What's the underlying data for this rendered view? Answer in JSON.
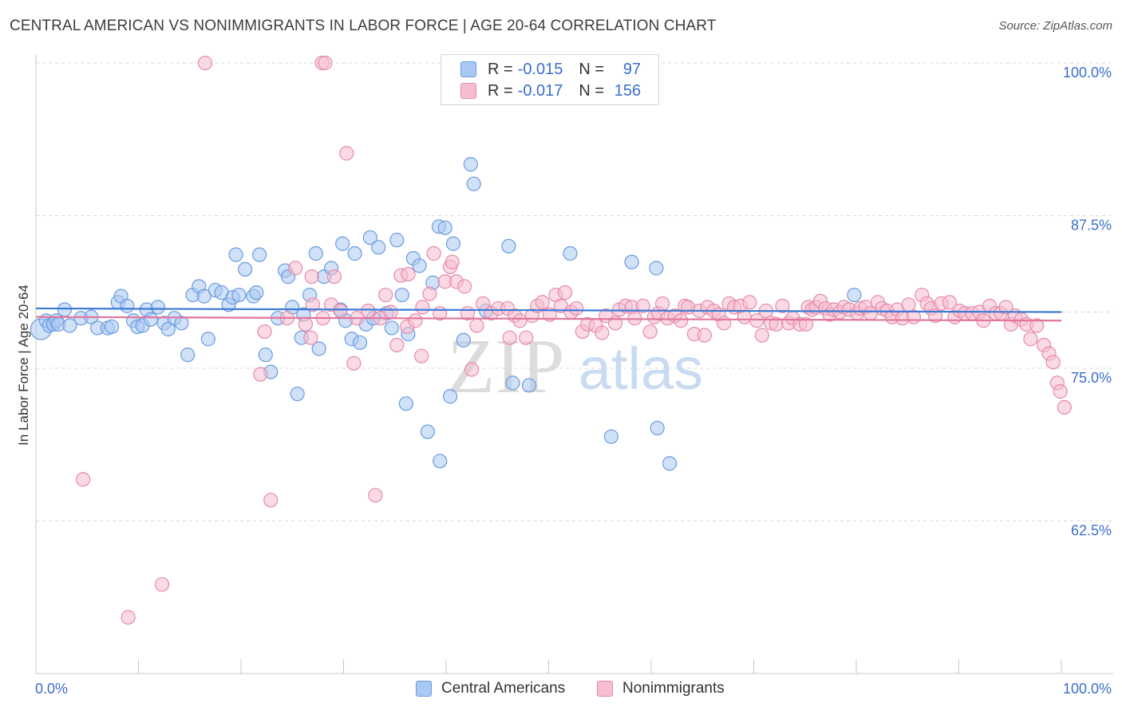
{
  "title": "CENTRAL AMERICAN VS NONIMMIGRANTS IN LABOR FORCE | AGE 20-64 CORRELATION CHART",
  "source": "Source: ZipAtlas.com",
  "watermark": {
    "zip": "ZIP",
    "atlas": "atlas"
  },
  "legend_top": {
    "rows": [
      {
        "r_label": "R =",
        "r_value": "-0.015",
        "n_label": "N =",
        "n_value": "97",
        "color": "#a9c8f2",
        "border": "#6a9be0"
      },
      {
        "r_label": "R =",
        "r_value": "-0.017",
        "n_label": "N =",
        "n_value": "156",
        "color": "#f6bdd0",
        "border": "#e889a8"
      }
    ]
  },
  "legend_bottom": [
    {
      "label": "Central Americans",
      "color": "#a9c8f2",
      "border": "#6a9be0"
    },
    {
      "label": "Nonimmigrants",
      "color": "#f6bdd0",
      "border": "#e889a8"
    }
  ],
  "chart_data": {
    "type": "scatter",
    "title": "CENTRAL AMERICAN VS NONIMMIGRANTS IN LABOR FORCE | AGE 20-64 CORRELATION CHART",
    "xlabel": "",
    "ylabel": "In Labor Force | Age 20-64",
    "xlim": [
      0,
      100
    ],
    "ylim": [
      50,
      100
    ],
    "x_tick_labels": [
      "0.0%",
      "100.0%"
    ],
    "y_ticks": [
      100,
      87.5,
      75,
      62.5
    ],
    "y_tick_labels": [
      "100.0%",
      "87.5%",
      "75.0%",
      "62.5%"
    ],
    "grid": true,
    "legend_position": "top-center",
    "series": [
      {
        "name": "Central Americans",
        "color": "#6a9be0",
        "fill": "#a9c8f2",
        "trend": [
          [
            0,
            79.9
          ],
          [
            100,
            79.6
          ]
        ],
        "points": [
          [
            0.5,
            78.2
          ],
          [
            1,
            78.9
          ],
          [
            1.3,
            78.5
          ],
          [
            1.7,
            78.6
          ],
          [
            2,
            78.9
          ],
          [
            2.2,
            78.6
          ],
          [
            2.8,
            79.8
          ],
          [
            3.3,
            78.5
          ],
          [
            4.4,
            79.1
          ],
          [
            5.4,
            79.2
          ],
          [
            6,
            78.3
          ],
          [
            7,
            78.3
          ],
          [
            7.4,
            78.4
          ],
          [
            8,
            80.4
          ],
          [
            8.3,
            80.9
          ],
          [
            8.9,
            80.1
          ],
          [
            9.5,
            78.9
          ],
          [
            9.9,
            78.4
          ],
          [
            10.4,
            78.5
          ],
          [
            10.8,
            79.8
          ],
          [
            11.2,
            79.0
          ],
          [
            11.9,
            80.0
          ],
          [
            12.5,
            78.7
          ],
          [
            12.9,
            78.2
          ],
          [
            13.5,
            79.1
          ],
          [
            14.2,
            78.7
          ],
          [
            14.8,
            76.1
          ],
          [
            15.3,
            81.0
          ],
          [
            15.9,
            81.7
          ],
          [
            16.4,
            80.9
          ],
          [
            16.8,
            77.4
          ],
          [
            17.5,
            81.4
          ],
          [
            18.1,
            81.2
          ],
          [
            18.8,
            80.2
          ],
          [
            19.2,
            80.8
          ],
          [
            19.5,
            84.3
          ],
          [
            19.8,
            81.0
          ],
          [
            20.4,
            83.1
          ],
          [
            21.2,
            80.9
          ],
          [
            21.8,
            84.3
          ],
          [
            21.5,
            81.2
          ],
          [
            22.4,
            76.1
          ],
          [
            22.9,
            74.7
          ],
          [
            23.6,
            79.1
          ],
          [
            24.3,
            83.0
          ],
          [
            24.6,
            82.5
          ],
          [
            25,
            80.0
          ],
          [
            25.5,
            72.9
          ],
          [
            25.9,
            77.5
          ],
          [
            26.1,
            79.4
          ],
          [
            26.7,
            81.0
          ],
          [
            27.3,
            84.4
          ],
          [
            27.6,
            76.6
          ],
          [
            28.1,
            82.5
          ],
          [
            28.8,
            83.2
          ],
          [
            29.7,
            79.8
          ],
          [
            29.9,
            85.2
          ],
          [
            30.2,
            78.9
          ],
          [
            30.8,
            77.4
          ],
          [
            31.1,
            84.4
          ],
          [
            31.6,
            77.1
          ],
          [
            32.2,
            78.6
          ],
          [
            32.6,
            85.7
          ],
          [
            32.9,
            79.1
          ],
          [
            33.4,
            84.9
          ],
          [
            34.2,
            79.5
          ],
          [
            34.7,
            78.3
          ],
          [
            35.2,
            85.5
          ],
          [
            35.7,
            81.0
          ],
          [
            36.1,
            72.1
          ],
          [
            36.3,
            77.8
          ],
          [
            36.8,
            84.0
          ],
          [
            37.4,
            83.4
          ],
          [
            38.2,
            69.8
          ],
          [
            38.7,
            82.0
          ],
          [
            39.3,
            86.6
          ],
          [
            39.4,
            67.4
          ],
          [
            39.9,
            86.5
          ],
          [
            40.4,
            72.7
          ],
          [
            40.7,
            85.2
          ],
          [
            41.7,
            77.3
          ],
          [
            42.4,
            91.7
          ],
          [
            42.7,
            90.1
          ],
          [
            43.9,
            79.7
          ],
          [
            46.1,
            85.0
          ],
          [
            46.5,
            73.8
          ],
          [
            48.1,
            73.6
          ],
          [
            52.1,
            84.4
          ],
          [
            56.1,
            69.4
          ],
          [
            58.1,
            83.7
          ],
          [
            60.6,
            70.1
          ],
          [
            60.5,
            83.2
          ],
          [
            61.8,
            67.2
          ],
          [
            79.8,
            81.0
          ]
        ]
      },
      {
        "name": "Nonimmigrants",
        "color": "#e889a8",
        "fill": "#f6bdd0",
        "trend": [
          [
            0,
            79.2
          ],
          [
            100,
            78.9
          ]
        ],
        "points": [
          [
            4.6,
            65.9
          ],
          [
            9,
            54.6
          ],
          [
            12.3,
            57.3
          ],
          [
            16.5,
            100.0
          ],
          [
            22.3,
            78.0
          ],
          [
            21.9,
            74.5
          ],
          [
            22.9,
            64.2
          ],
          [
            24.5,
            79.1
          ],
          [
            25.3,
            83.2
          ],
          [
            26.3,
            78.6
          ],
          [
            26.8,
            77.5
          ],
          [
            26.9,
            82.5
          ],
          [
            27,
            80.2
          ],
          [
            28,
            79.1
          ],
          [
            27.9,
            100.0
          ],
          [
            28.2,
            100.0
          ],
          [
            28.8,
            80.2
          ],
          [
            29.1,
            82.5
          ],
          [
            29.7,
            79.7
          ],
          [
            30.3,
            92.6
          ],
          [
            31,
            75.4
          ],
          [
            31.3,
            79.1
          ],
          [
            32.4,
            79.7
          ],
          [
            33.1,
            64.6
          ],
          [
            33.6,
            79.1
          ],
          [
            34.1,
            81.0
          ],
          [
            34.6,
            79.6
          ],
          [
            35.2,
            76.9
          ],
          [
            35.6,
            82.6
          ],
          [
            36.2,
            78.4
          ],
          [
            36.3,
            82.7
          ],
          [
            37,
            78.9
          ],
          [
            37.6,
            76.0
          ],
          [
            37.7,
            80.0
          ],
          [
            38.4,
            81.1
          ],
          [
            38.8,
            84.4
          ],
          [
            39.4,
            79.5
          ],
          [
            39.9,
            82.1
          ],
          [
            40.4,
            83.3
          ],
          [
            40.6,
            83.7
          ],
          [
            41,
            82.1
          ],
          [
            41.8,
            81.7
          ],
          [
            42.1,
            79.5
          ],
          [
            42.5,
            74.9
          ],
          [
            43,
            78.5
          ],
          [
            43.6,
            80.3
          ],
          [
            44.4,
            79.5
          ],
          [
            45.1,
            79.9
          ],
          [
            46,
            79.9
          ],
          [
            46.2,
            77.5
          ],
          [
            46.7,
            79.3
          ],
          [
            47.2,
            78.9
          ],
          [
            47.8,
            77.5
          ],
          [
            48.4,
            79.3
          ],
          [
            48.9,
            80.1
          ],
          [
            49.4,
            80.4
          ],
          [
            50.1,
            79.4
          ],
          [
            50.7,
            81.0
          ],
          [
            51.2,
            80.1
          ],
          [
            51.6,
            81.2
          ],
          [
            52.2,
            79.6
          ],
          [
            52.7,
            79.9
          ],
          [
            53.3,
            78.0
          ],
          [
            53.8,
            78.6
          ],
          [
            54.6,
            78.5
          ],
          [
            55.2,
            77.9
          ],
          [
            55.6,
            79.3
          ],
          [
            56.5,
            78.7
          ],
          [
            56.9,
            79.8
          ],
          [
            57.5,
            80.1
          ],
          [
            58.1,
            80.0
          ],
          [
            58.4,
            79.1
          ],
          [
            59.2,
            80.1
          ],
          [
            59.9,
            78.0
          ],
          [
            60.3,
            79.2
          ],
          [
            60.7,
            79.5
          ],
          [
            61.1,
            80.3
          ],
          [
            61.6,
            79.1
          ],
          [
            62.3,
            79.3
          ],
          [
            62.9,
            78.9
          ],
          [
            63.3,
            80.1
          ],
          [
            63.6,
            80.0
          ],
          [
            64.2,
            77.8
          ],
          [
            64.7,
            79.7
          ],
          [
            65.2,
            77.7
          ],
          [
            65.5,
            80.0
          ],
          [
            66.1,
            79.7
          ],
          [
            66.6,
            79.4
          ],
          [
            67.1,
            78.7
          ],
          [
            67.6,
            80.3
          ],
          [
            68.1,
            80.0
          ],
          [
            68.7,
            80.1
          ],
          [
            69.1,
            79.2
          ],
          [
            69.6,
            80.4
          ],
          [
            70.3,
            78.9
          ],
          [
            70.8,
            77.7
          ],
          [
            71.2,
            79.7
          ],
          [
            71.7,
            78.7
          ],
          [
            72.2,
            78.6
          ],
          [
            72.8,
            80.1
          ],
          [
            73.4,
            78.7
          ],
          [
            73.8,
            79.1
          ],
          [
            74.5,
            78.6
          ],
          [
            75.1,
            78.6
          ],
          [
            75.3,
            80.0
          ],
          [
            75.7,
            79.8
          ],
          [
            76.1,
            80.0
          ],
          [
            76.5,
            80.5
          ],
          [
            77,
            79.9
          ],
          [
            77.4,
            79.4
          ],
          [
            77.8,
            79.8
          ],
          [
            78.4,
            79.6
          ],
          [
            78.8,
            80.0
          ],
          [
            79.3,
            79.8
          ],
          [
            80.1,
            79.5
          ],
          [
            80.4,
            79.9
          ],
          [
            80.9,
            80.0
          ],
          [
            81.4,
            79.5
          ],
          [
            82.1,
            80.4
          ],
          [
            82.5,
            79.9
          ],
          [
            83,
            79.7
          ],
          [
            83.5,
            79.2
          ],
          [
            84,
            79.8
          ],
          [
            84.5,
            79.1
          ],
          [
            85.1,
            80.2
          ],
          [
            85.6,
            79.2
          ],
          [
            86.4,
            81.0
          ],
          [
            86.9,
            80.3
          ],
          [
            87.3,
            79.9
          ],
          [
            87.7,
            79.3
          ],
          [
            88.3,
            80.3
          ],
          [
            89.1,
            80.4
          ],
          [
            89.6,
            79.2
          ],
          [
            90.1,
            79.7
          ],
          [
            90.6,
            79.5
          ],
          [
            91.3,
            79.5
          ],
          [
            92,
            79.6
          ],
          [
            92.4,
            78.9
          ],
          [
            93,
            80.1
          ],
          [
            93.6,
            79.5
          ],
          [
            94.1,
            79.5
          ],
          [
            94.6,
            80.0
          ],
          [
            95.1,
            78.6
          ],
          [
            95.5,
            79.3
          ],
          [
            96.1,
            79.0
          ],
          [
            96.6,
            78.6
          ],
          [
            97,
            77.4
          ],
          [
            97.6,
            78.5
          ],
          [
            98.3,
            76.9
          ],
          [
            98.8,
            76.2
          ],
          [
            99.2,
            75.5
          ],
          [
            99.6,
            73.8
          ],
          [
            99.9,
            73.1
          ],
          [
            100.3,
            71.8
          ]
        ]
      }
    ]
  }
}
